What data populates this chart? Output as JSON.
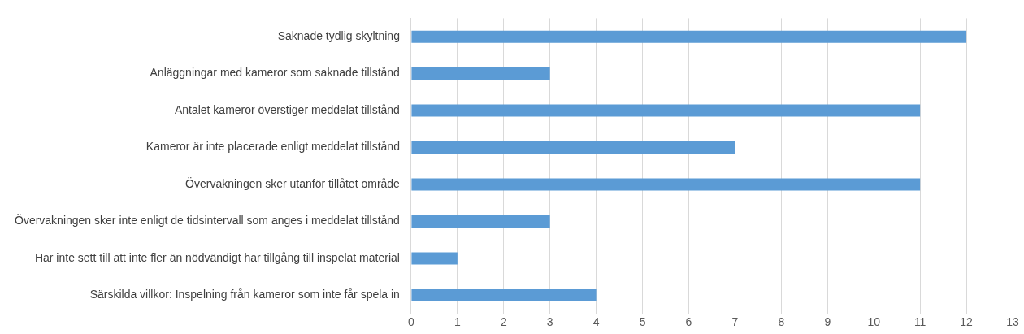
{
  "chart_data": {
    "type": "bar",
    "orientation": "horizontal",
    "categories": [
      "Saknade tydlig skyltning",
      "Anläggningar med kameror som saknade tillstånd",
      "Antalet kameror överstiger meddelat tillstånd",
      "Kameror är inte placerade enligt meddelat tillstånd",
      "Övervakningen sker utanför tillåtet område",
      "Övervakningen sker inte enligt de tidsintervall som anges i meddelat tillstånd",
      "Har inte sett till att inte fler än nödvändigt har tillgång till inspelat material",
      "Särskilda villkor: Inspelning från kameror som inte får spela in"
    ],
    "values": [
      12,
      3,
      11,
      7,
      11,
      3,
      1,
      4
    ],
    "color": "#5b9bd5",
    "xlim": [
      0,
      13
    ],
    "xticks": [
      0,
      1,
      2,
      3,
      4,
      5,
      6,
      7,
      8,
      9,
      10,
      11,
      12,
      13
    ],
    "grid": "x",
    "legend": false
  }
}
